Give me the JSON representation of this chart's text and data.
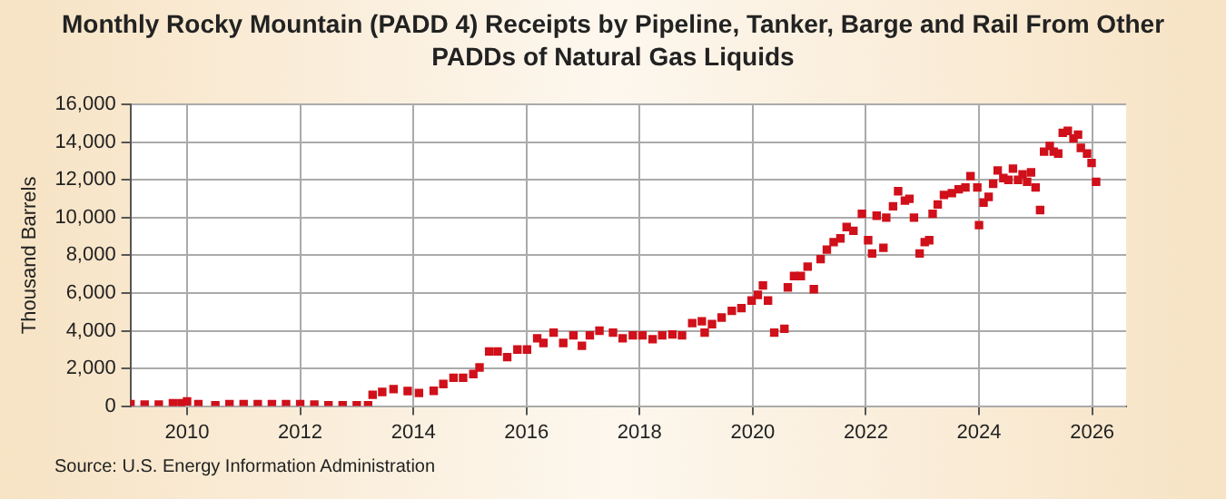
{
  "chart_data": {
    "type": "scatter",
    "title": "Monthly Rocky Mountain (PADD 4)  Receipts by Pipeline, Tanker, Barge and Rail From Other PADDs of Natural Gas Liquids",
    "ylabel": "Thousand Barrels",
    "annotations": [
      "Source: U.S. Energy Information Administration"
    ],
    "marker": "square",
    "grid": true,
    "xlim": [
      2009,
      2026.6
    ],
    "xticks": [
      2010,
      2012,
      2014,
      2016,
      2018,
      2020,
      2022,
      2024,
      2026
    ],
    "ylim": [
      0,
      16000
    ],
    "yticks": [
      {
        "value": 0,
        "label": "0"
      },
      {
        "value": 2000,
        "label": "2,000"
      },
      {
        "value": 4000,
        "label": "4,000"
      },
      {
        "value": 6000,
        "label": "6,000"
      },
      {
        "value": 8000,
        "label": "8,000"
      },
      {
        "value": 10000,
        "label": "10,000"
      },
      {
        "value": 12000,
        "label": "12,000"
      },
      {
        "value": 14000,
        "label": "14,000"
      },
      {
        "value": 16000,
        "label": "16,000"
      }
    ],
    "series": [
      {
        "color": "#d0101a",
        "x": [
          2009.0,
          2009.25,
          2009.5,
          2009.75,
          2009.9,
          2010.0,
          2010.2,
          2010.5,
          2010.75,
          2011.0,
          2011.25,
          2011.5,
          2011.75,
          2012.0,
          2012.25,
          2012.5,
          2012.75,
          2013.0,
          2013.2,
          2013.28,
          2013.45,
          2013.65,
          2013.9,
          2014.1,
          2014.36,
          2014.53,
          2014.71,
          2014.88,
          2015.06,
          2015.17,
          2015.34,
          2015.49,
          2015.66,
          2015.84,
          2016.01,
          2016.19,
          2016.3,
          2016.48,
          2016.65,
          2016.83,
          2016.98,
          2017.12,
          2017.29,
          2017.53,
          2017.7,
          2017.88,
          2018.05,
          2018.23,
          2018.4,
          2018.58,
          2018.75,
          2018.93,
          2019.1,
          2019.15,
          2019.28,
          2019.45,
          2019.63,
          2019.8,
          2019.98,
          2020.09,
          2020.18,
          2020.27,
          2020.38,
          2020.56,
          2020.62,
          2020.73,
          2020.85,
          2020.97,
          2021.08,
          2021.2,
          2021.31,
          2021.43,
          2021.55,
          2021.66,
          2021.78,
          2021.93,
          2022.04,
          2022.11,
          2022.19,
          2022.31,
          2022.36,
          2022.48,
          2022.57,
          2022.69,
          2022.77,
          2022.85,
          2022.95,
          2023.04,
          2023.12,
          2023.18,
          2023.27,
          2023.38,
          2023.52,
          2023.64,
          2023.76,
          2023.85,
          2023.97,
          2024.0,
          2024.08,
          2024.17,
          2024.25,
          2024.33,
          2024.43,
          2024.52,
          2024.6,
          2024.69,
          2024.77,
          2024.85,
          2024.92,
          2025.0,
          2025.08,
          2025.15,
          2025.25,
          2025.32,
          2025.4,
          2025.48,
          2025.57,
          2025.67,
          2025.75,
          2025.8,
          2025.91,
          2025.99,
          2026.07
        ],
        "values": [
          100,
          80,
          80,
          150,
          150,
          250,
          100,
          50,
          100,
          100,
          100,
          100,
          100,
          100,
          80,
          50,
          50,
          50,
          50,
          600,
          750,
          900,
          800,
          700,
          810,
          1170,
          1500,
          1500,
          1700,
          2050,
          2900,
          2900,
          2600,
          3000,
          3000,
          3600,
          3350,
          3900,
          3350,
          3750,
          3200,
          3750,
          4000,
          3900,
          3600,
          3750,
          3750,
          3550,
          3750,
          3800,
          3750,
          4400,
          4500,
          3900,
          4350,
          4700,
          5050,
          5200,
          5600,
          5900,
          6400,
          5600,
          3900,
          4100,
          6300,
          6900,
          6900,
          7400,
          6200,
          7800,
          8300,
          8700,
          8900,
          9500,
          9300,
          10200,
          8800,
          8100,
          10100,
          8400,
          10000,
          10600,
          11400,
          10900,
          11000,
          10000,
          8100,
          8700,
          8800,
          10200,
          10700,
          11200,
          11300,
          11500,
          11600,
          12200,
          11600,
          9600,
          10800,
          11100,
          11800,
          12500,
          12100,
          12000,
          12600,
          12000,
          12300,
          11900,
          12400,
          11600,
          10400,
          13500,
          13800,
          13500,
          13400,
          14500,
          14600,
          14200,
          14400,
          13700,
          13400,
          12900,
          11900
        ]
      }
    ]
  }
}
